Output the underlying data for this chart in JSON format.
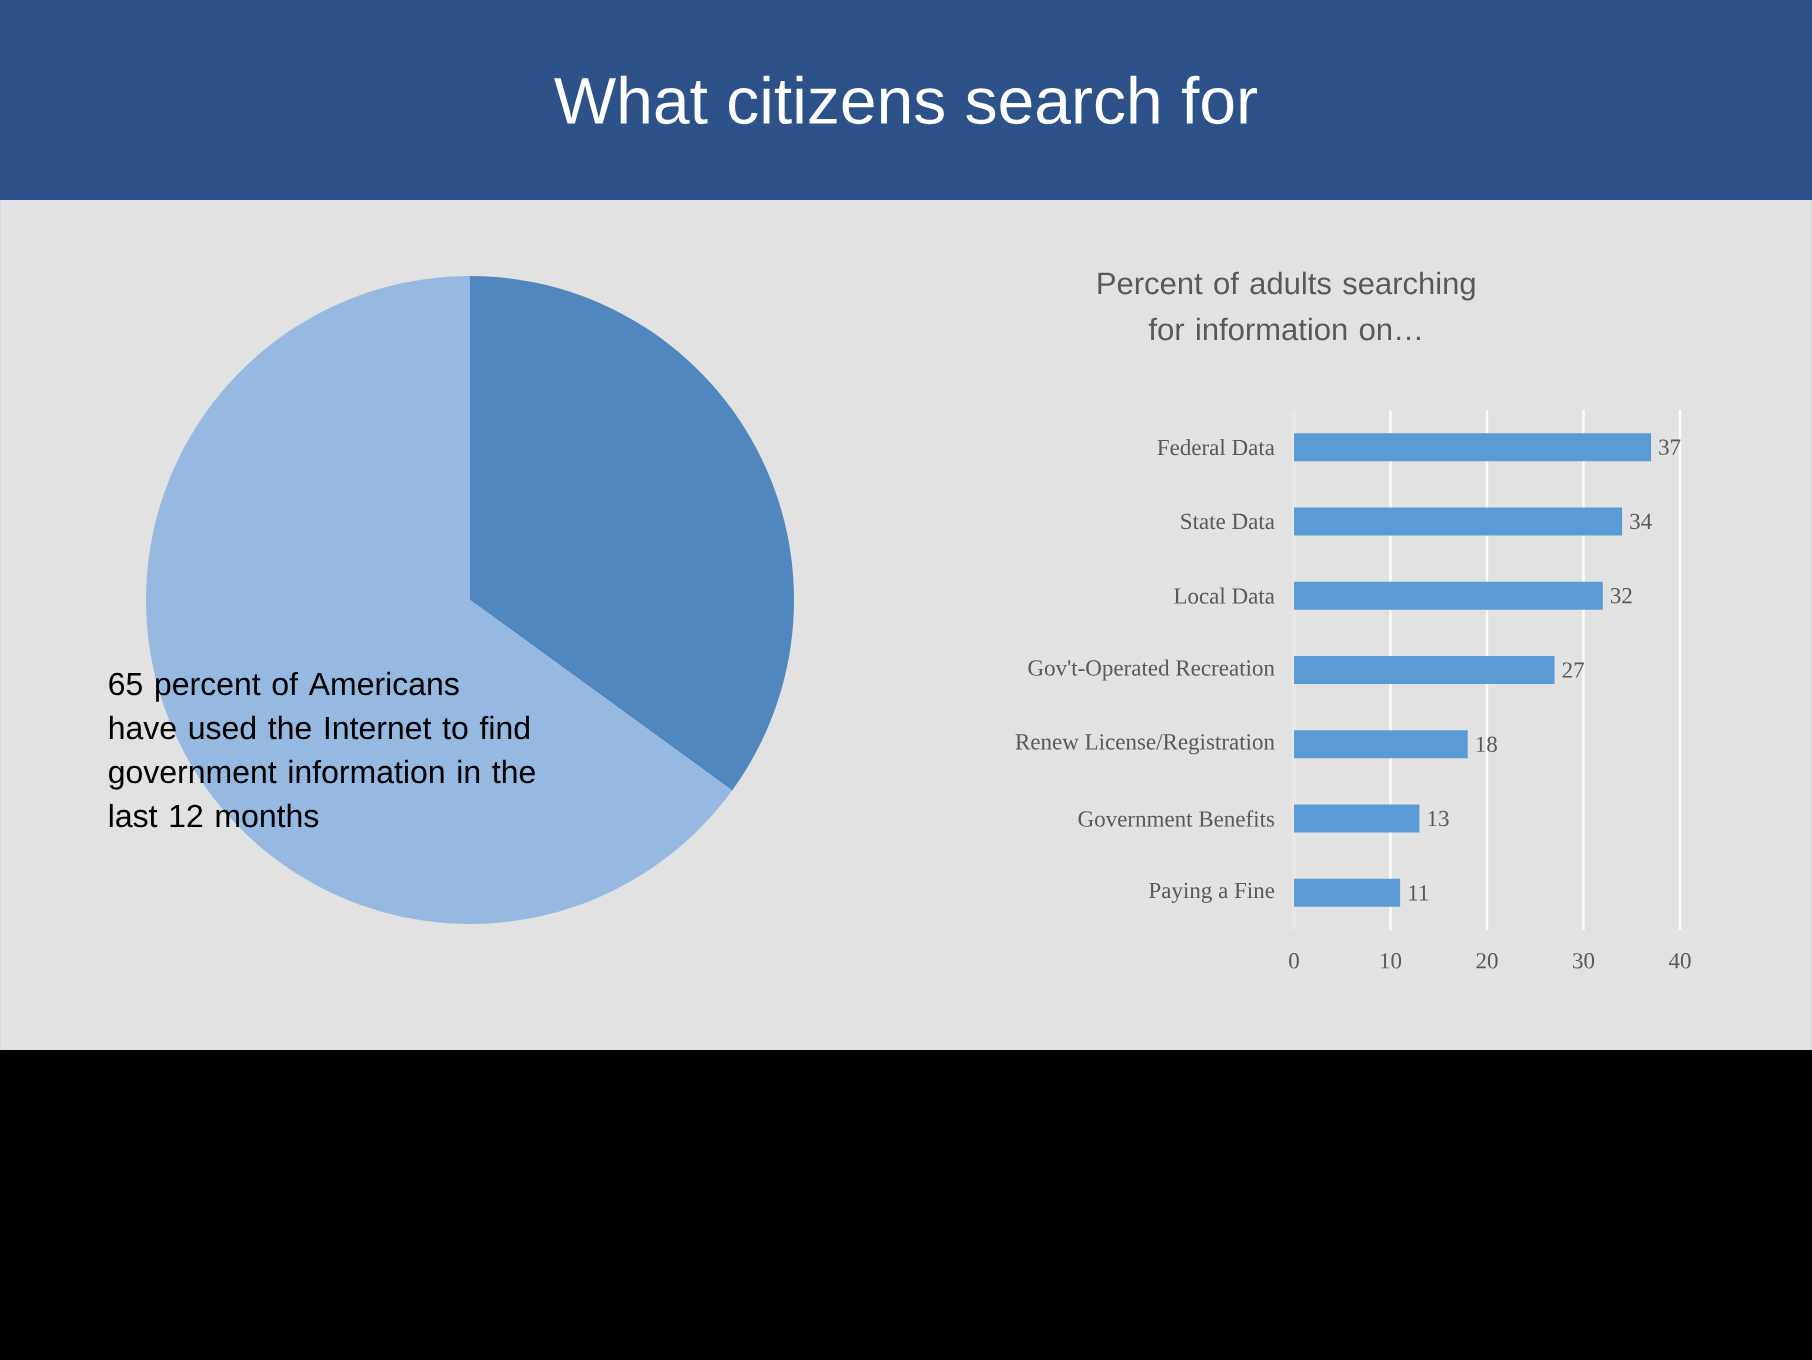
{
  "chart_data": [
    {
      "type": "pie",
      "title": "What citizens search for",
      "categories": [
        null,
        null
      ],
      "values": [
        35,
        65
      ],
      "colors": [
        "#4f87be",
        "#95b9e1"
      ],
      "annotations": [
        "65 percent of Americans have used the Internet to find government information in the last 12 months"
      ]
    },
    {
      "type": "bar",
      "orientation": "horizontal",
      "title": "Percent of adults searching for information on…",
      "categories": [
        "Federal Data",
        "State Data",
        "Local Data",
        "Gov't-Operated Recreation",
        "Renew License/Registration",
        "Government Benefits",
        "Paying a Fine"
      ],
      "values": [
        37,
        34,
        32,
        27,
        18,
        13,
        11
      ],
      "color": "#5b9bd5",
      "xlim": [
        0,
        40
      ],
      "xticks": [
        0,
        10,
        20,
        30,
        40
      ],
      "grid": "x",
      "data_labels": true
    }
  ]
}
